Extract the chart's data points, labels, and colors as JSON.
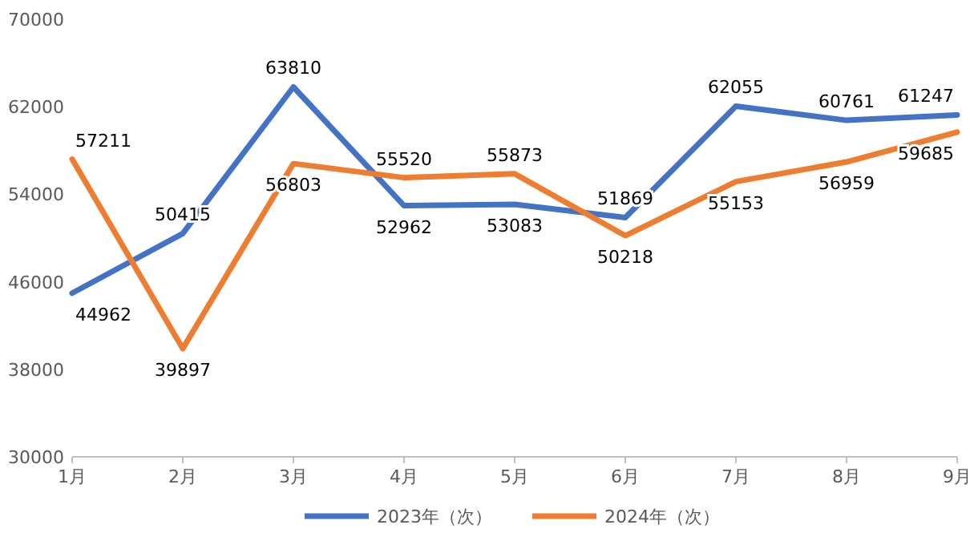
{
  "chart_data": {
    "type": "line",
    "categories": [
      "1月",
      "2月",
      "3月",
      "4月",
      "5月",
      "6月",
      "7月",
      "8月",
      "9月"
    ],
    "series": [
      {
        "name": "2023年（次）",
        "color": "#4472c4",
        "values": [
          44962,
          50415,
          63810,
          52962,
          53083,
          51869,
          62055,
          60761,
          61247
        ]
      },
      {
        "name": "2024年（次）",
        "color": "#ed7d31",
        "values": [
          57211,
          39897,
          56803,
          55520,
          55873,
          50218,
          55153,
          56959,
          59685
        ]
      }
    ],
    "ylim": [
      30000,
      70000
    ],
    "yticks": [
      30000,
      38000,
      46000,
      54000,
      62000,
      70000
    ],
    "data_labels": true,
    "legend": "bottom",
    "grid": false,
    "marker": "none",
    "line_style": "solid"
  }
}
